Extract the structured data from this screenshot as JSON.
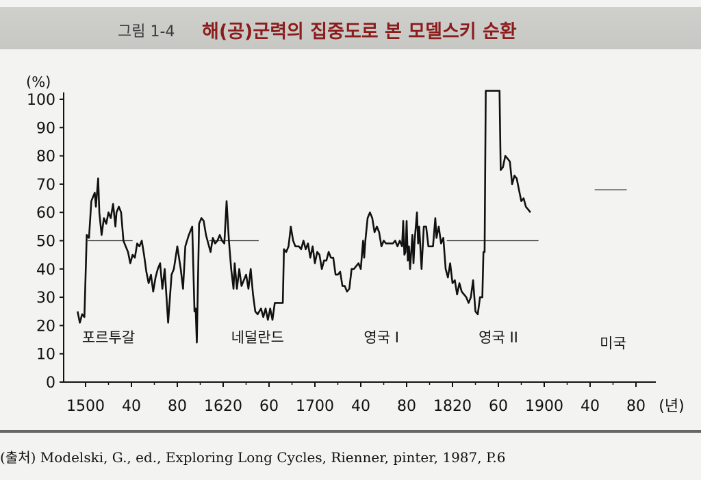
{
  "figure": {
    "number": "그림 1-4",
    "title": "해(공)군력의 집중도로 본 모델스키 순환"
  },
  "chart_data": {
    "type": "line",
    "ylabel": "(%)",
    "xunit": "(년)",
    "ylim": [
      0,
      100
    ],
    "xlim": [
      1490,
      1990
    ],
    "yticks": [
      0,
      10,
      20,
      30,
      40,
      50,
      60,
      70,
      80,
      90,
      100
    ],
    "xticks": [
      {
        "year": 1500,
        "label": "1500"
      },
      {
        "year": 1540,
        "label": "40"
      },
      {
        "year": 1580,
        "label": "80"
      },
      {
        "year": 1620,
        "label": "1620"
      },
      {
        "year": 1660,
        "label": "60"
      },
      {
        "year": 1700,
        "label": "1700"
      },
      {
        "year": 1740,
        "label": "40"
      },
      {
        "year": 1780,
        "label": "80"
      },
      {
        "year": 1820,
        "label": "1820"
      },
      {
        "year": 1860,
        "label": "60"
      },
      {
        "year": 1900,
        "label": "1900"
      },
      {
        "year": 1940,
        "label": "40"
      },
      {
        "year": 1980,
        "label": "80"
      }
    ],
    "cycles": [
      {
        "name": "포르투갈",
        "label_x": 1520,
        "label_y": 14,
        "threshold": 50,
        "threshold_from": 1502,
        "threshold_to": 1541
      },
      {
        "name": "네덜란드",
        "label_x": 1650,
        "label_y": 14,
        "threshold": 50,
        "threshold_from": 1608,
        "threshold_to": 1651
      },
      {
        "name": "영국 I",
        "label_x": 1758,
        "label_y": 14,
        "threshold": null,
        "threshold_from": null,
        "threshold_to": null
      },
      {
        "name": "영국 II",
        "label_x": 1860,
        "label_y": 14,
        "threshold": 50,
        "threshold_from": 1815,
        "threshold_to": 1895
      },
      {
        "name": "미국",
        "label_x": 1960,
        "label_y": 12,
        "threshold": 68,
        "threshold_from": 1944,
        "threshold_to": 1972
      }
    ],
    "series": [
      {
        "name": "해(공)군력 집중도",
        "points": [
          [
            1493,
            25
          ],
          [
            1495,
            21
          ],
          [
            1497,
            24
          ],
          [
            1499,
            23
          ],
          [
            1501,
            52
          ],
          [
            1503,
            51
          ],
          [
            1505,
            64
          ],
          [
            1508,
            67
          ],
          [
            1509,
            62
          ],
          [
            1511,
            72
          ],
          [
            1512,
            60
          ],
          [
            1514,
            52
          ],
          [
            1516,
            58
          ],
          [
            1518,
            56
          ],
          [
            1520,
            60
          ],
          [
            1522,
            58
          ],
          [
            1524,
            63
          ],
          [
            1526,
            55
          ],
          [
            1527,
            60
          ],
          [
            1529,
            62
          ],
          [
            1531,
            60
          ],
          [
            1533,
            50
          ],
          [
            1535,
            48
          ],
          [
            1537,
            46
          ],
          [
            1539,
            42
          ],
          [
            1541,
            45
          ],
          [
            1543,
            44
          ],
          [
            1545,
            49
          ],
          [
            1547,
            48
          ],
          [
            1549,
            50
          ],
          [
            1551,
            45
          ],
          [
            1553,
            39
          ],
          [
            1555,
            35
          ],
          [
            1557,
            38
          ],
          [
            1559,
            32
          ],
          [
            1561,
            37
          ],
          [
            1563,
            40
          ],
          [
            1565,
            42
          ],
          [
            1567,
            33
          ],
          [
            1569,
            40
          ],
          [
            1572,
            21
          ],
          [
            1575,
            38
          ],
          [
            1577,
            40
          ],
          [
            1580,
            48
          ],
          [
            1583,
            40
          ],
          [
            1585,
            33
          ],
          [
            1587,
            48
          ],
          [
            1590,
            52
          ],
          [
            1593,
            55
          ],
          [
            1595,
            25
          ],
          [
            1596,
            26
          ],
          [
            1597,
            14
          ],
          [
            1599,
            56
          ],
          [
            1601,
            58
          ],
          [
            1603,
            57
          ],
          [
            1605,
            52
          ],
          [
            1607,
            49
          ],
          [
            1609,
            46
          ],
          [
            1611,
            51
          ],
          [
            1613,
            49
          ],
          [
            1615,
            50
          ],
          [
            1617,
            52
          ],
          [
            1619,
            50
          ],
          [
            1621,
            49
          ],
          [
            1623,
            64
          ],
          [
            1625,
            50
          ],
          [
            1627,
            40
          ],
          [
            1629,
            33
          ],
          [
            1630,
            42
          ],
          [
            1632,
            33
          ],
          [
            1634,
            40
          ],
          [
            1636,
            34
          ],
          [
            1638,
            36
          ],
          [
            1640,
            38
          ],
          [
            1642,
            33
          ],
          [
            1644,
            40
          ],
          [
            1646,
            31
          ],
          [
            1648,
            25
          ],
          [
            1650,
            24
          ],
          [
            1653,
            26
          ],
          [
            1655,
            23
          ],
          [
            1657,
            26
          ],
          [
            1659,
            22
          ],
          [
            1661,
            26
          ],
          [
            1663,
            22
          ],
          [
            1665,
            28
          ],
          [
            1667,
            28
          ],
          [
            1669,
            28
          ],
          [
            1672,
            28
          ],
          [
            1673,
            47
          ],
          [
            1675,
            46
          ],
          [
            1677,
            48
          ],
          [
            1679,
            55
          ],
          [
            1681,
            50
          ],
          [
            1683,
            48
          ],
          [
            1686,
            48
          ],
          [
            1688,
            47
          ],
          [
            1690,
            50
          ],
          [
            1692,
            47
          ],
          [
            1694,
            49
          ],
          [
            1696,
            44
          ],
          [
            1698,
            48
          ],
          [
            1700,
            42
          ],
          [
            1702,
            46
          ],
          [
            1704,
            45
          ],
          [
            1706,
            40
          ],
          [
            1708,
            43
          ],
          [
            1710,
            43
          ],
          [
            1712,
            46
          ],
          [
            1714,
            44
          ],
          [
            1716,
            44
          ],
          [
            1718,
            38
          ],
          [
            1720,
            38
          ],
          [
            1722,
            39
          ],
          [
            1724,
            34
          ],
          [
            1726,
            34
          ],
          [
            1728,
            32
          ],
          [
            1730,
            33
          ],
          [
            1732,
            40
          ],
          [
            1734,
            40
          ],
          [
            1736,
            41
          ],
          [
            1738,
            42
          ],
          [
            1740,
            40
          ],
          [
            1742,
            50
          ],
          [
            1743,
            44
          ],
          [
            1744,
            50
          ],
          [
            1746,
            58
          ],
          [
            1748,
            60
          ],
          [
            1750,
            58
          ],
          [
            1752,
            53
          ],
          [
            1754,
            55
          ],
          [
            1756,
            53
          ],
          [
            1758,
            48
          ],
          [
            1760,
            50
          ],
          [
            1762,
            49
          ],
          [
            1764,
            49
          ],
          [
            1766,
            49
          ],
          [
            1768,
            49
          ],
          [
            1770,
            50
          ],
          [
            1772,
            48
          ],
          [
            1774,
            50
          ],
          [
            1776,
            48
          ],
          [
            1777,
            57
          ],
          [
            1778,
            45
          ],
          [
            1779,
            46
          ],
          [
            1780,
            57
          ],
          [
            1781,
            43
          ],
          [
            1782,
            48
          ],
          [
            1783,
            40
          ],
          [
            1785,
            52
          ],
          [
            1786,
            42
          ],
          [
            1787,
            50
          ],
          [
            1788,
            55
          ],
          [
            1789,
            60
          ],
          [
            1790,
            49
          ],
          [
            1791,
            55
          ],
          [
            1793,
            40
          ],
          [
            1795,
            55
          ],
          [
            1797,
            55
          ],
          [
            1799,
            48
          ],
          [
            1801,
            48
          ],
          [
            1803,
            48
          ],
          [
            1805,
            58
          ],
          [
            1806,
            51
          ],
          [
            1808,
            55
          ],
          [
            1810,
            49
          ],
          [
            1812,
            51
          ],
          [
            1814,
            40
          ],
          [
            1816,
            37
          ],
          [
            1818,
            42
          ],
          [
            1820,
            35
          ],
          [
            1822,
            36
          ],
          [
            1824,
            31
          ],
          [
            1826,
            35
          ],
          [
            1828,
            32
          ],
          [
            1830,
            31
          ],
          [
            1832,
            30
          ],
          [
            1834,
            28
          ],
          [
            1836,
            30
          ],
          [
            1838,
            36
          ],
          [
            1840,
            25
          ],
          [
            1842,
            24
          ],
          [
            1844,
            30
          ],
          [
            1846,
            30
          ],
          [
            1847,
            46
          ],
          [
            1848,
            46
          ],
          [
            1849,
            103
          ],
          [
            1852,
            103
          ],
          [
            1854,
            103
          ],
          [
            1856,
            103
          ],
          [
            1858,
            103
          ],
          [
            1861,
            103
          ],
          [
            1862,
            75
          ],
          [
            1864,
            76
          ],
          [
            1866,
            80
          ],
          [
            1868,
            79
          ],
          [
            1870,
            78
          ],
          [
            1872,
            70
          ],
          [
            1874,
            73
          ],
          [
            1876,
            72
          ],
          [
            1878,
            68
          ],
          [
            1880,
            64
          ],
          [
            1882,
            65
          ],
          [
            1884,
            62
          ],
          [
            1886,
            61
          ],
          [
            1888,
            60
          ]
        ]
      }
    ]
  },
  "labels": {
    "tick_zero": "0"
  },
  "source": "(출처) Modelski, G., ed., Exploring Long Cycles, Rienner, pinter, 1987, P.6"
}
